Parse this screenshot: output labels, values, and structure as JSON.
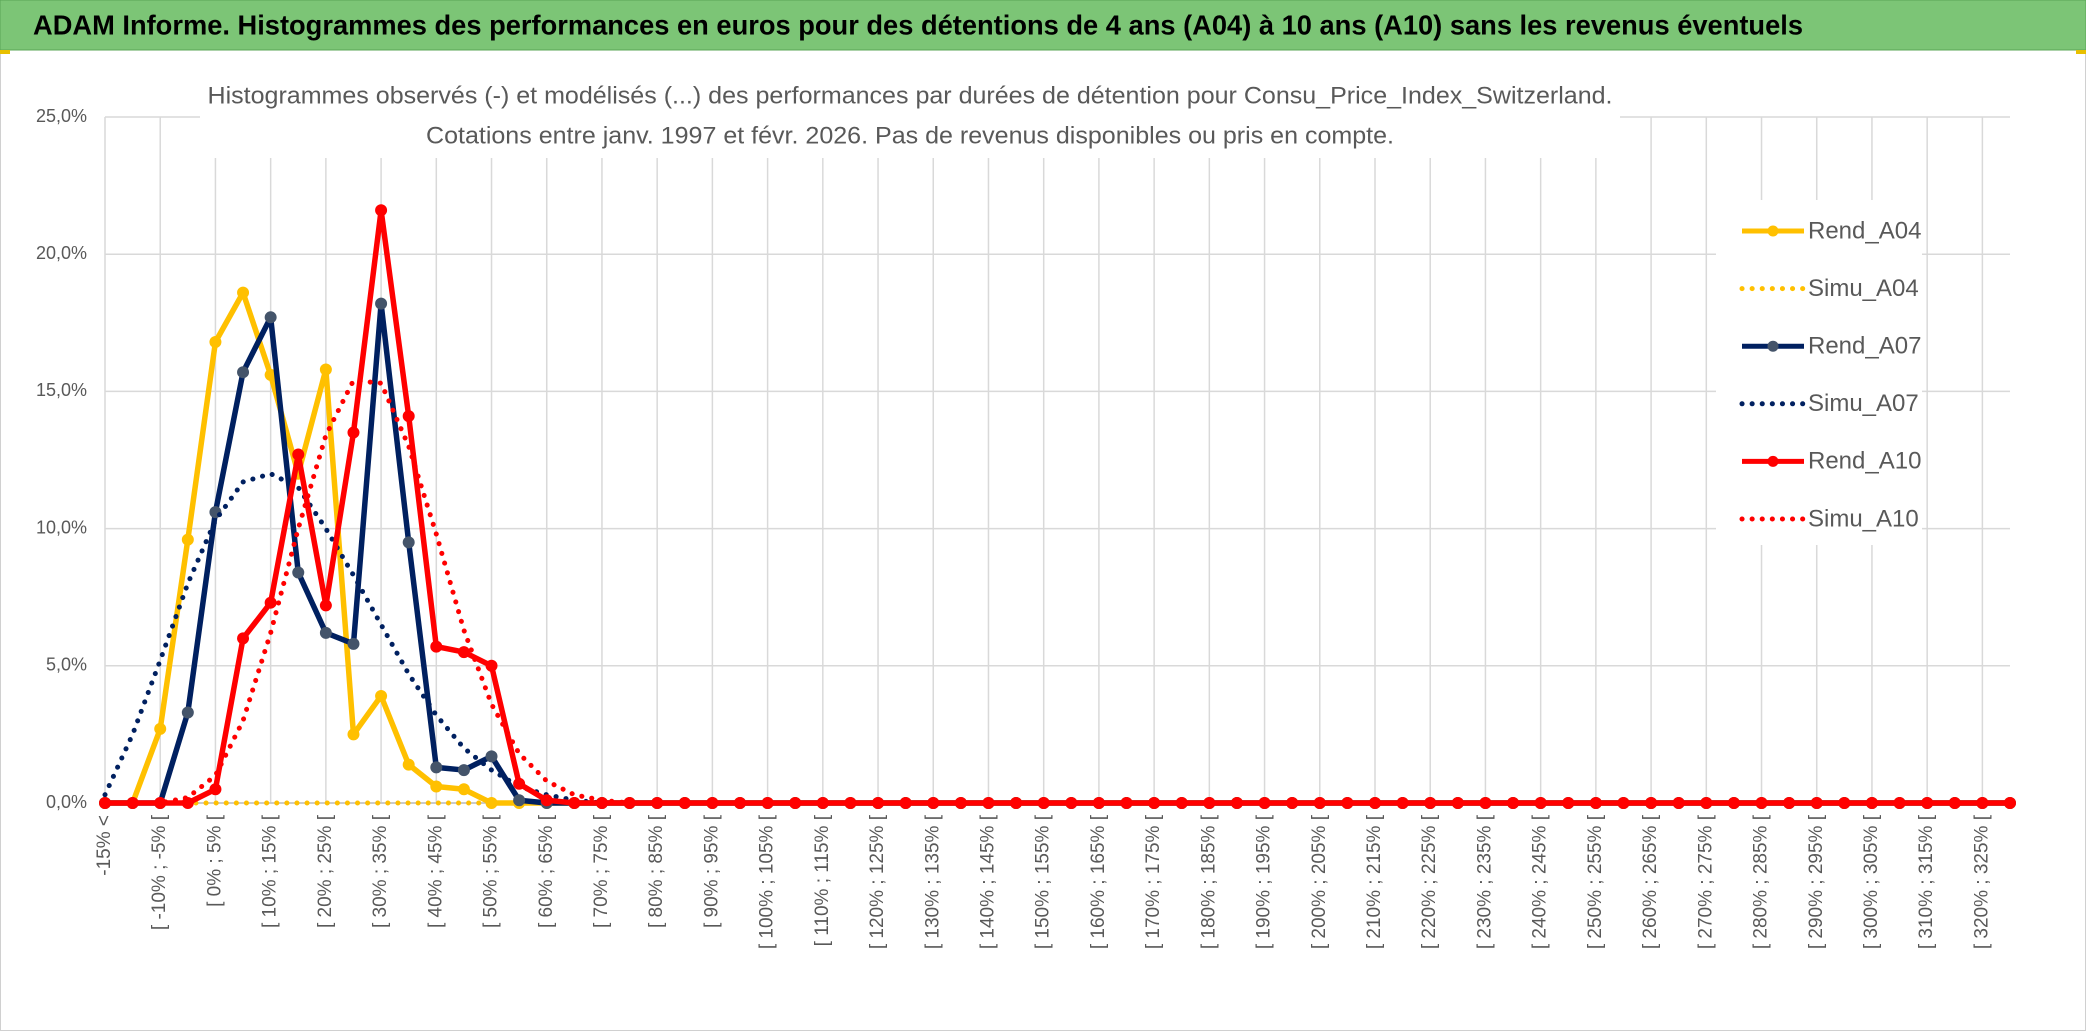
{
  "header": "ADAM Informe. Histogrammes des performances en euros pour des détentions de 4 ans (A04) à 10 ans (A10) sans les revenus éventuels",
  "chart_data": {
    "type": "line",
    "title": "Histogrammes observés (-) et modélisés (...) des performances par durées de détention pour Consu_Price_Index_Switzerland.",
    "subtitle": "Cotations entre janv. 1997 et févr. 2026. Pas de revenus disponibles ou pris en compte.",
    "categories": [
      "-15% <",
      null,
      "[ -10% ; -5% [",
      null,
      "[ 0% ; 5% [",
      null,
      "[ 10% ; 15% [",
      null,
      "[ 20% ; 25% [",
      null,
      "[ 30% ; 35% [",
      null,
      "[ 40% ; 45% [",
      null,
      "[ 50% ; 55% [",
      null,
      "[ 60% ; 65% [",
      null,
      "[ 70% ; 75% [",
      null,
      "[ 80% ; 85% [",
      null,
      "[ 90% ; 95% [",
      null,
      "[ 100% ; 105% [",
      null,
      "[ 110% ; 115% [",
      null,
      "[ 120% ; 125% [",
      null,
      "[ 130% ; 135% [",
      null,
      "[ 140% ; 145% [",
      null,
      "[ 150% ; 155% [",
      null,
      "[ 160% ; 165% [",
      null,
      "[ 170% ; 175% [",
      null,
      "[ 180% ; 185% [",
      null,
      "[ 190% ; 195% [",
      null,
      "[ 200% ; 205% [",
      null,
      "[ 210% ; 215% [",
      null,
      "[ 220% ; 225% [",
      null,
      "[ 230% ; 235% [",
      null,
      "[ 240% ; 245% [",
      null,
      "[ 250% ; 255% [",
      null,
      "[ 260% ; 265% [",
      null,
      "[ 270% ; 275% [",
      null,
      "[ 280% ; 285% [",
      null,
      "[ 290% ; 295% [",
      null,
      "[ 300% ; 305% [",
      null,
      "[ 310% ; 315% [",
      null,
      "[ 320% ; 325% [",
      null
    ],
    "series": [
      {
        "name": "Rend_A04",
        "color": "#FFC000",
        "style": "solid",
        "markers": true,
        "values": [
          0,
          0,
          2.7,
          9.6,
          16.8,
          18.6,
          15.6,
          12.0,
          15.8,
          2.5,
          3.9,
          1.4,
          0.6,
          0.5,
          0,
          0,
          0,
          0,
          0,
          0,
          0,
          0,
          0,
          0,
          0,
          0,
          0,
          0,
          0,
          0,
          0,
          0,
          0,
          0,
          0,
          0,
          0,
          0,
          0,
          0,
          0,
          0,
          0,
          0,
          0,
          0,
          0,
          0,
          0,
          0,
          0,
          0,
          0,
          0,
          0,
          0,
          0,
          0,
          0,
          0,
          0,
          0,
          0,
          0,
          0,
          0,
          0,
          0,
          0,
          0
        ]
      },
      {
        "name": "Simu_A04",
        "color": "#FFC000",
        "style": "dotted",
        "markers": false,
        "values": [
          0,
          0,
          0,
          0,
          0,
          0,
          0,
          0,
          0,
          0,
          0,
          0,
          0,
          0,
          0,
          0,
          0,
          0,
          0,
          0,
          0,
          0,
          0,
          0,
          0,
          0,
          0,
          0,
          0,
          0,
          0,
          0,
          0,
          0,
          0,
          0,
          0,
          0,
          0,
          0,
          0,
          0,
          0,
          0,
          0,
          0,
          0,
          0,
          0,
          0,
          0,
          0,
          0,
          0,
          0,
          0,
          0,
          0,
          0,
          0,
          0,
          0,
          0,
          0,
          0,
          0,
          0,
          0,
          0,
          0
        ]
      },
      {
        "name": "Rend_A07",
        "color": "#002060",
        "style": "solid",
        "markers": true,
        "values": [
          0,
          0,
          0,
          3.3,
          10.6,
          15.7,
          17.7,
          8.4,
          6.2,
          5.8,
          18.2,
          9.5,
          1.3,
          1.2,
          1.7,
          0.1,
          0,
          0,
          0,
          0,
          0,
          0,
          0,
          0,
          0,
          0,
          0,
          0,
          0,
          0,
          0,
          0,
          0,
          0,
          0,
          0,
          0,
          0,
          0,
          0,
          0,
          0,
          0,
          0,
          0,
          0,
          0,
          0,
          0,
          0,
          0,
          0,
          0,
          0,
          0,
          0,
          0,
          0,
          0,
          0,
          0,
          0,
          0,
          0,
          0,
          0,
          0,
          0,
          0,
          0
        ]
      },
      {
        "name": "Simu_A07",
        "color": "#002060",
        "style": "dotted",
        "markers": false,
        "values": [
          0.3,
          2.5,
          5.2,
          8.0,
          10.3,
          11.7,
          12.0,
          11.5,
          10.0,
          8.3,
          6.5,
          4.7,
          3.2,
          2.0,
          1.2,
          0.6,
          0.3,
          0.1,
          0,
          0,
          0,
          0,
          0,
          0,
          0,
          0,
          0,
          0,
          0,
          0,
          0,
          0,
          0,
          0,
          0,
          0,
          0,
          0,
          0,
          0,
          0,
          0,
          0,
          0,
          0,
          0,
          0,
          0,
          0,
          0,
          0,
          0,
          0,
          0,
          0,
          0,
          0,
          0,
          0,
          0,
          0,
          0,
          0,
          0,
          0,
          0,
          0,
          0,
          0,
          0
        ]
      },
      {
        "name": "Rend_A10",
        "color": "#FF0000",
        "style": "solid",
        "markers": true,
        "values": [
          0,
          0,
          0,
          0,
          0.5,
          6.0,
          7.3,
          12.7,
          7.2,
          13.5,
          21.6,
          14.1,
          5.7,
          5.5,
          5.0,
          0.7,
          0.1,
          0,
          0,
          0,
          0,
          0,
          0,
          0,
          0,
          0,
          0,
          0,
          0,
          0,
          0,
          0,
          0,
          0,
          0,
          0,
          0,
          0,
          0,
          0,
          0,
          0,
          0,
          0,
          0,
          0,
          0,
          0,
          0,
          0,
          0,
          0,
          0,
          0,
          0,
          0,
          0,
          0,
          0,
          0,
          0,
          0,
          0,
          0,
          0,
          0,
          0,
          0,
          0,
          0
        ]
      },
      {
        "name": "Simu_A10",
        "color": "#FF0000",
        "style": "dotted",
        "markers": false,
        "values": [
          0,
          0,
          0,
          0.2,
          1.0,
          3.0,
          6.2,
          10.0,
          13.4,
          15.4,
          15.3,
          13.0,
          9.8,
          6.3,
          3.6,
          1.8,
          0.8,
          0.3,
          0.1,
          0,
          0,
          0,
          0,
          0,
          0,
          0,
          0,
          0,
          0,
          0,
          0,
          0,
          0,
          0,
          0,
          0,
          0,
          0,
          0,
          0,
          0,
          0,
          0,
          0,
          0,
          0,
          0,
          0,
          0,
          0,
          0,
          0,
          0,
          0,
          0,
          0,
          0,
          0,
          0,
          0,
          0,
          0,
          0,
          0,
          0,
          0,
          0,
          0,
          0,
          0
        ]
      }
    ],
    "ylim": [
      0,
      25
    ],
    "yticks": [
      {
        "value": 0,
        "label": "0,0%"
      },
      {
        "value": 5,
        "label": "5,0%"
      },
      {
        "value": 10,
        "label": "10,0%"
      },
      {
        "value": 15,
        "label": "15,0%"
      },
      {
        "value": 20,
        "label": "20,0%"
      },
      {
        "value": 25,
        "label": "25,0%"
      }
    ],
    "grid": true,
    "legend": "right"
  }
}
